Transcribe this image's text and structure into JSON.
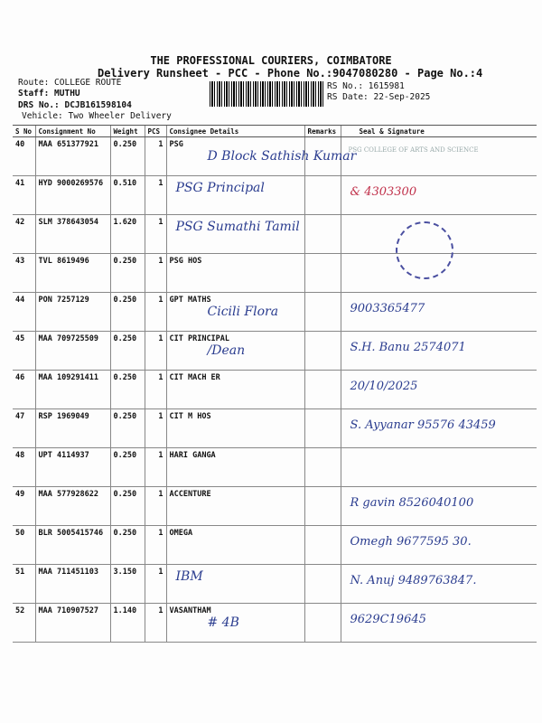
{
  "header": {
    "company": "THE PROFESSIONAL COURIERS, COIMBATORE",
    "subtitle": "Delivery Runsheet - PCC - Phone No.:9047080280 - Page No.:4",
    "route": "Route: COLLEGE ROUTE",
    "staff": "Staff: MUTHU",
    "drs": "DRS No.: DCJB161598104",
    "vehicle": "Vehicle: Two Wheeler Delivery",
    "rs_no": "RS No.: 1615981",
    "rs_date": "RS Date: 22-Sep-2025"
  },
  "columns": [
    "S No",
    "Consignment No",
    "Weight",
    "PCS",
    "Consignee Details",
    "Remarks",
    "Seal & Signature"
  ],
  "rows": [
    {
      "sno": "40",
      "cn": "MAA 651377921",
      "wt": "0.250",
      "pcs": "1",
      "consignee": "PSG",
      "hw_consignee": "D Block Sathish Kumar",
      "hw_sign": "PSG COLLEGE OF ARTS AND SCIENCE"
    },
    {
      "sno": "41",
      "cn": "HYD 9000269576",
      "wt": "0.510",
      "pcs": "1",
      "consignee": "",
      "hw_consignee": "PSG Principal",
      "hw_sign": "& 4303300"
    },
    {
      "sno": "42",
      "cn": "SLM 378643054",
      "wt": "1.620",
      "pcs": "1",
      "consignee": "",
      "hw_consignee": "PSG Sumathi Tamil",
      "hw_sign": ""
    },
    {
      "sno": "43",
      "cn": "TVL 8619496",
      "wt": "0.250",
      "pcs": "1",
      "consignee": "PSG HOS",
      "hw_consignee": "",
      "hw_sign": ""
    },
    {
      "sno": "44",
      "cn": "PON 7257129",
      "wt": "0.250",
      "pcs": "1",
      "consignee": "GPT MATHS",
      "hw_consignee": "Cicili Flora",
      "hw_sign": "9003365477"
    },
    {
      "sno": "45",
      "cn": "MAA 709725509",
      "wt": "0.250",
      "pcs": "1",
      "consignee": "CIT PRINCIPAL",
      "hw_consignee": "/Dean",
      "hw_sign": "S.H. Banu 2574071"
    },
    {
      "sno": "46",
      "cn": "MAA 109291411",
      "wt": "0.250",
      "pcs": "1",
      "consignee": "CIT MACH ER",
      "hw_consignee": "",
      "hw_sign": "20/10/2025"
    },
    {
      "sno": "47",
      "cn": "RSP 1969049",
      "wt": "0.250",
      "pcs": "1",
      "consignee": "CIT  M HOS",
      "hw_consignee": "",
      "hw_sign": "S. Ayyanar 95576 43459"
    },
    {
      "sno": "48",
      "cn": "UPT 4114937",
      "wt": "0.250",
      "pcs": "1",
      "consignee": "HARI GANGA",
      "hw_consignee": "",
      "hw_sign": ""
    },
    {
      "sno": "49",
      "cn": "MAA 577928622",
      "wt": "0.250",
      "pcs": "1",
      "consignee": "ACCENTURE",
      "hw_consignee": "",
      "hw_sign": "R gavin 8526040100"
    },
    {
      "sno": "50",
      "cn": "BLR 5005415746",
      "wt": "0.250",
      "pcs": "1",
      "consignee": "OMEGA",
      "hw_consignee": "",
      "hw_sign": "Omegh 9677595 30."
    },
    {
      "sno": "51",
      "cn": "MAA 711451103",
      "wt": "3.150",
      "pcs": "1",
      "consignee": "",
      "hw_consignee": "IBM",
      "hw_sign": "N. Anuj 9489763847."
    },
    {
      "sno": "52",
      "cn": "MAA 710907527",
      "wt": "1.140",
      "pcs": "1",
      "consignee": "VASANTHAM",
      "hw_consignee": "# 4B",
      "hw_sign": "9629C19645"
    }
  ]
}
